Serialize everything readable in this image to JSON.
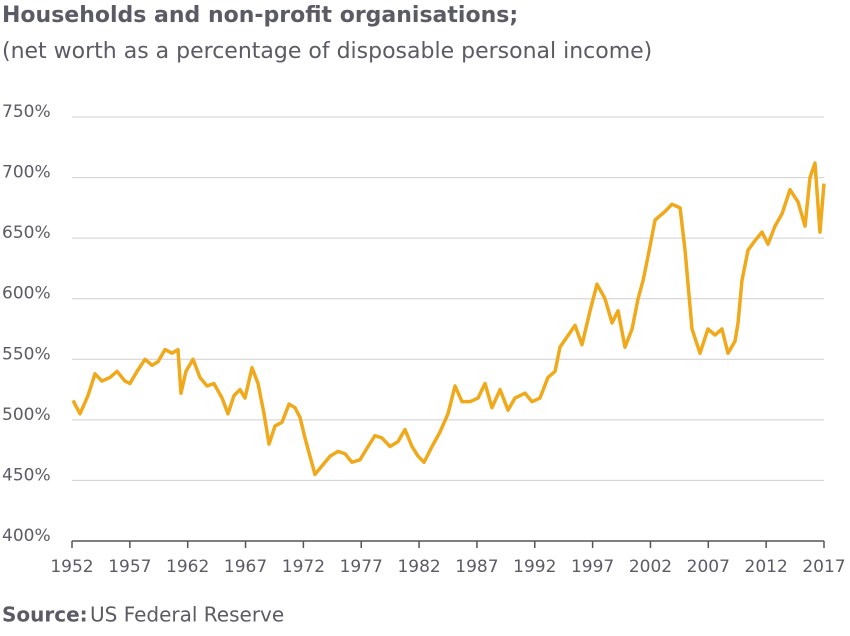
{
  "chart_data": {
    "type": "line",
    "title": "Households and non-profit organisations;",
    "subtitle": "(net worth as a percentage of disposable personal income)",
    "source_label": "Source:",
    "source": "US Federal Reserve",
    "x": [
      1952.09,
      1952.69,
      1953.38,
      1953.99,
      1954.59,
      1955.28,
      1955.89,
      1956.58,
      1957.01,
      1957.62,
      1958.31,
      1958.92,
      1959.43,
      1960.04,
      1960.64,
      1961.16,
      1961.42,
      1961.85,
      1962.46,
      1963.06,
      1963.67,
      1964.27,
      1964.97,
      1965.48,
      1966.0,
      1966.52,
      1966.95,
      1967.56,
      1968.08,
      1968.6,
      1969.03,
      1969.55,
      1970.15,
      1970.76,
      1971.28,
      1971.71,
      1972.14,
      1972.57,
      1973.0,
      1973.61,
      1974.3,
      1974.99,
      1975.6,
      1976.2,
      1976.89,
      1977.59,
      1978.19,
      1978.8,
      1979.49,
      1980.18,
      1980.78,
      1981.39,
      1981.91,
      1982.43,
      1983.12,
      1983.81,
      1984.5,
      1985.11,
      1985.71,
      1986.4,
      1987.1,
      1987.7,
      1988.3,
      1989.0,
      1989.69,
      1990.29,
      1991.16,
      1991.76,
      1992.45,
      1993.14,
      1993.75,
      1994.18,
      1995.48,
      1996.08,
      1996.78,
      1997.38,
      1998.07,
      1998.68,
      1999.2,
      1999.8,
      2000.41,
      2000.93,
      2001.36,
      2001.79,
      2002.4,
      2003.26,
      2003.86,
      2004.56,
      2004.99,
      2005.59,
      2006.28,
      2006.97,
      2007.58,
      2008.18,
      2008.7,
      2009.31,
      2009.57,
      2009.91,
      2010.43,
      2011.04,
      2011.64,
      2012.16,
      2012.77,
      2013.37,
      2014.06,
      2014.75,
      2015.36,
      2015.79,
      2016.22,
      2016.65,
      2017.0
    ],
    "series": [
      {
        "color": "#f0a91a",
        "values": [
          516,
          505,
          520,
          538,
          532,
          535,
          540,
          532,
          530,
          540,
          550,
          545,
          548,
          558,
          555,
          558,
          522,
          540,
          550,
          535,
          528,
          530,
          518,
          505,
          520,
          525,
          518,
          543,
          530,
          505,
          480,
          495,
          498,
          513,
          510,
          502,
          485,
          470,
          455,
          462,
          470,
          474,
          472,
          465,
          467,
          478,
          487,
          485,
          478,
          482,
          492,
          478,
          470,
          465,
          478,
          490,
          505,
          528,
          515,
          515,
          518,
          530,
          510,
          525,
          508,
          518,
          522,
          515,
          518,
          535,
          540,
          560,
          578,
          562,
          590,
          612,
          600,
          580,
          590,
          560,
          575,
          600,
          615,
          635,
          665,
          672,
          678,
          675,
          640,
          575,
          555,
          575,
          570,
          575,
          555,
          565,
          580,
          615,
          640,
          648,
          655,
          645,
          660,
          670,
          690,
          680,
          660,
          700,
          712,
          655,
          695
        ]
      }
    ],
    "xlim": [
      1952,
      2017
    ],
    "xticks": [
      1952,
      1957,
      1962,
      1967,
      1972,
      1977,
      1982,
      1987,
      1992,
      1997,
      2002,
      2007,
      2012,
      2017
    ],
    "ylim": [
      400,
      750
    ],
    "yticks": [
      {
        "value": 400,
        "label": "400%"
      },
      {
        "value": 450,
        "label": "450%"
      },
      {
        "value": 500,
        "label": "500%"
      },
      {
        "value": 550,
        "label": "550%"
      },
      {
        "value": 600,
        "label": "600%"
      },
      {
        "value": 650,
        "label": "650%"
      },
      {
        "value": 700,
        "label": "700%"
      },
      {
        "value": 750,
        "label": "750%"
      }
    ],
    "grid": true
  }
}
